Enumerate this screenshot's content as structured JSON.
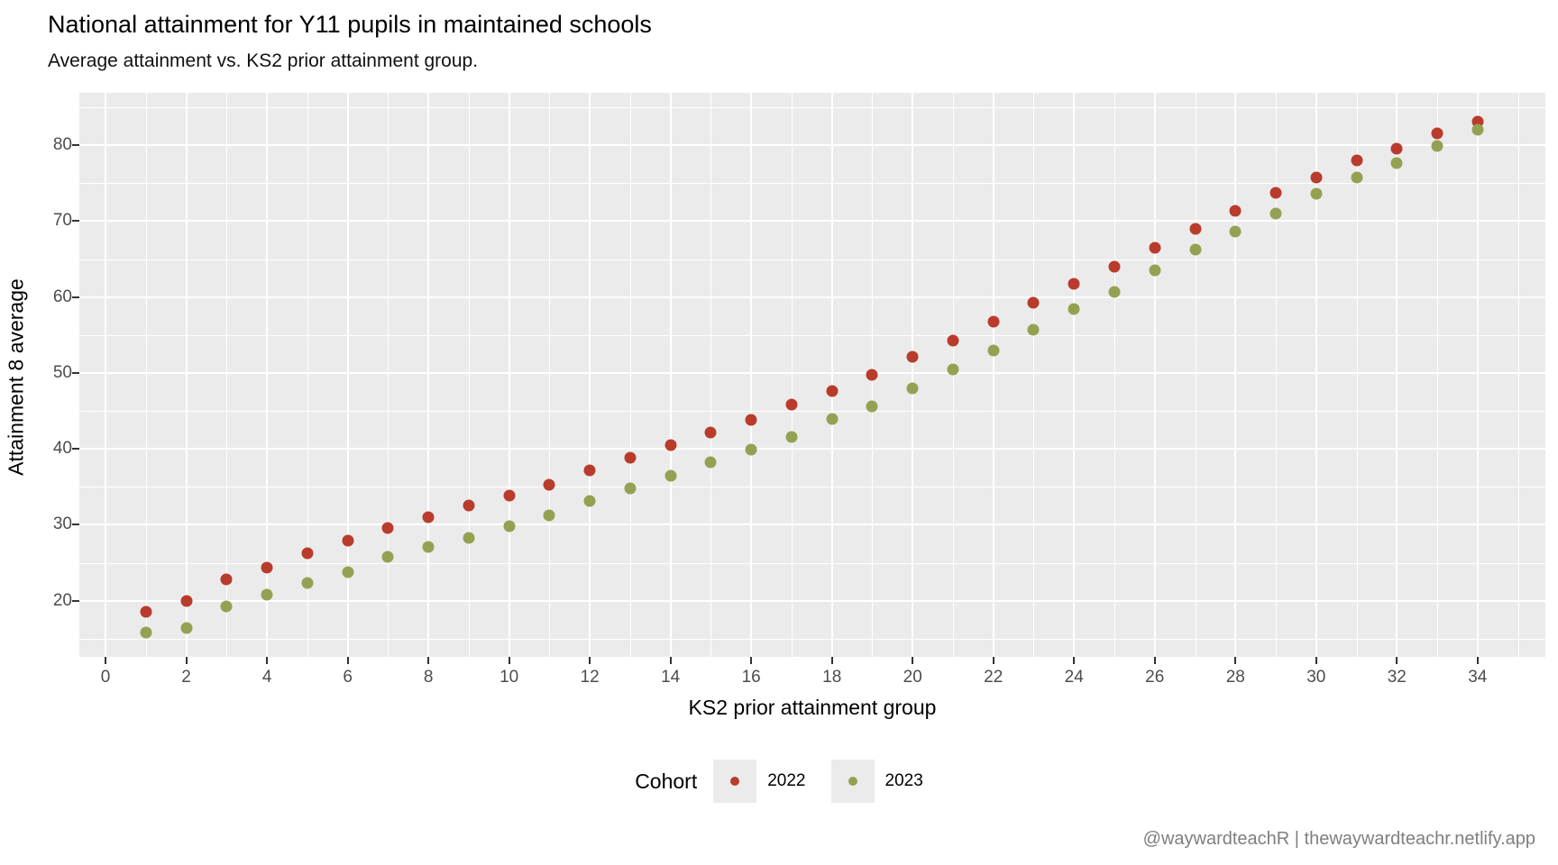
{
  "chart_data": {
    "type": "scatter",
    "title": "National attainment for Y11 pupils in maintained schools",
    "subtitle": "Average attainment vs. KS2 prior attainment group.",
    "xlabel": "KS2 prior attainment group",
    "ylabel": "Attainment 8 average",
    "legend_title": "Cohort",
    "legend_position": "bottom",
    "grid": true,
    "x": [
      1,
      2,
      3,
      4,
      5,
      6,
      7,
      8,
      9,
      10,
      11,
      12,
      13,
      14,
      15,
      16,
      17,
      18,
      19,
      20,
      21,
      22,
      23,
      24,
      25,
      26,
      27,
      28,
      29,
      30,
      31,
      32,
      33,
      34
    ],
    "series": [
      {
        "name": "2022",
        "color": "#b93b2c",
        "values": [
          18.5,
          19.9,
          22.8,
          24.4,
          26.3,
          27.9,
          29.6,
          31.0,
          32.5,
          33.9,
          35.3,
          37.2,
          38.8,
          40.5,
          42.1,
          43.8,
          45.8,
          47.6,
          49.8,
          52.1,
          54.3,
          56.7,
          59.2,
          61.7,
          64.0,
          66.5,
          69.0,
          71.3,
          73.7,
          75.8,
          78.0,
          79.6,
          81.6,
          83.1
        ]
      },
      {
        "name": "2023",
        "color": "#93a252",
        "values": [
          15.8,
          16.4,
          19.2,
          20.8,
          22.3,
          23.8,
          25.8,
          27.1,
          28.3,
          29.8,
          31.2,
          33.1,
          34.8,
          36.4,
          38.2,
          39.9,
          41.6,
          43.9,
          45.6,
          48.0,
          50.5,
          53.0,
          55.7,
          58.4,
          60.7,
          63.5,
          66.3,
          68.6,
          71.0,
          73.6,
          75.8,
          77.6,
          79.9,
          82.0
        ]
      }
    ],
    "axes": {
      "xlim": [
        -0.65,
        35.68
      ],
      "ylim": [
        12.6,
        86.9
      ],
      "x_major_ticks": [
        0,
        2,
        4,
        6,
        8,
        10,
        12,
        14,
        16,
        18,
        20,
        22,
        24,
        26,
        28,
        30,
        32,
        34
      ],
      "x_minor_ticks": [
        1,
        3,
        5,
        7,
        9,
        11,
        13,
        15,
        17,
        19,
        21,
        23,
        25,
        27,
        29,
        31,
        33,
        35
      ],
      "y_major_ticks": [
        20,
        30,
        40,
        50,
        60,
        70,
        80
      ],
      "y_minor_ticks": [
        15,
        25,
        35,
        45,
        55,
        65,
        75,
        85
      ]
    },
    "style": {
      "panel_bg": "#ebebeb",
      "grid_color": "#ffffff",
      "tick_color": "#333333",
      "tick_label_color": "#4d4d4d",
      "legend_key_bg": "#ebebeb"
    }
  },
  "footer": {
    "text": "@waywardteachR | thewaywardteachr.netlify.app"
  }
}
